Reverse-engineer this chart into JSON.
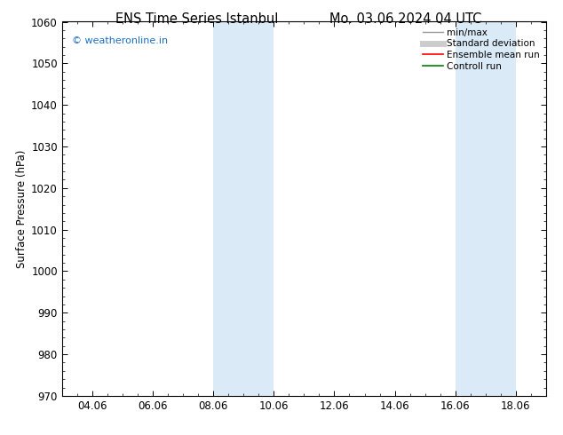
{
  "title_left": "ENS Time Series Istanbul",
  "title_right": "Mo. 03.06.2024 04 UTC",
  "ylabel": "Surface Pressure (hPa)",
  "ylim": [
    970,
    1060
  ],
  "yticks": [
    970,
    980,
    990,
    1000,
    1010,
    1020,
    1030,
    1040,
    1050,
    1060
  ],
  "xtick_labels": [
    "04.06",
    "06.06",
    "08.06",
    "10.06",
    "12.06",
    "14.06",
    "16.06",
    "18.06"
  ],
  "xtick_positions": [
    2,
    4,
    6,
    8,
    10,
    12,
    14,
    16
  ],
  "x_min": 1,
  "x_max": 17,
  "shaded_bands": [
    {
      "x_start": 6.0,
      "x_end": 7.0
    },
    {
      "x_start": 7.0,
      "x_end": 8.0
    },
    {
      "x_start": 14.0,
      "x_end": 15.0
    },
    {
      "x_start": 15.0,
      "x_end": 16.0
    }
  ],
  "shade_color": "#daeaf7",
  "watermark_text": "© weatheronline.in",
  "watermark_color": "#1a6fc4",
  "legend_items": [
    {
      "label": "min/max",
      "color": "#999999",
      "lw": 1.0,
      "ls": "-"
    },
    {
      "label": "Standard deviation",
      "color": "#cccccc",
      "lw": 5,
      "ls": "-"
    },
    {
      "label": "Ensemble mean run",
      "color": "red",
      "lw": 1.2,
      "ls": "-"
    },
    {
      "label": "Controll run",
      "color": "green",
      "lw": 1.2,
      "ls": "-"
    }
  ],
  "bg_color": "#ffffff",
  "font_size": 8.5,
  "title_font_size": 10.5
}
